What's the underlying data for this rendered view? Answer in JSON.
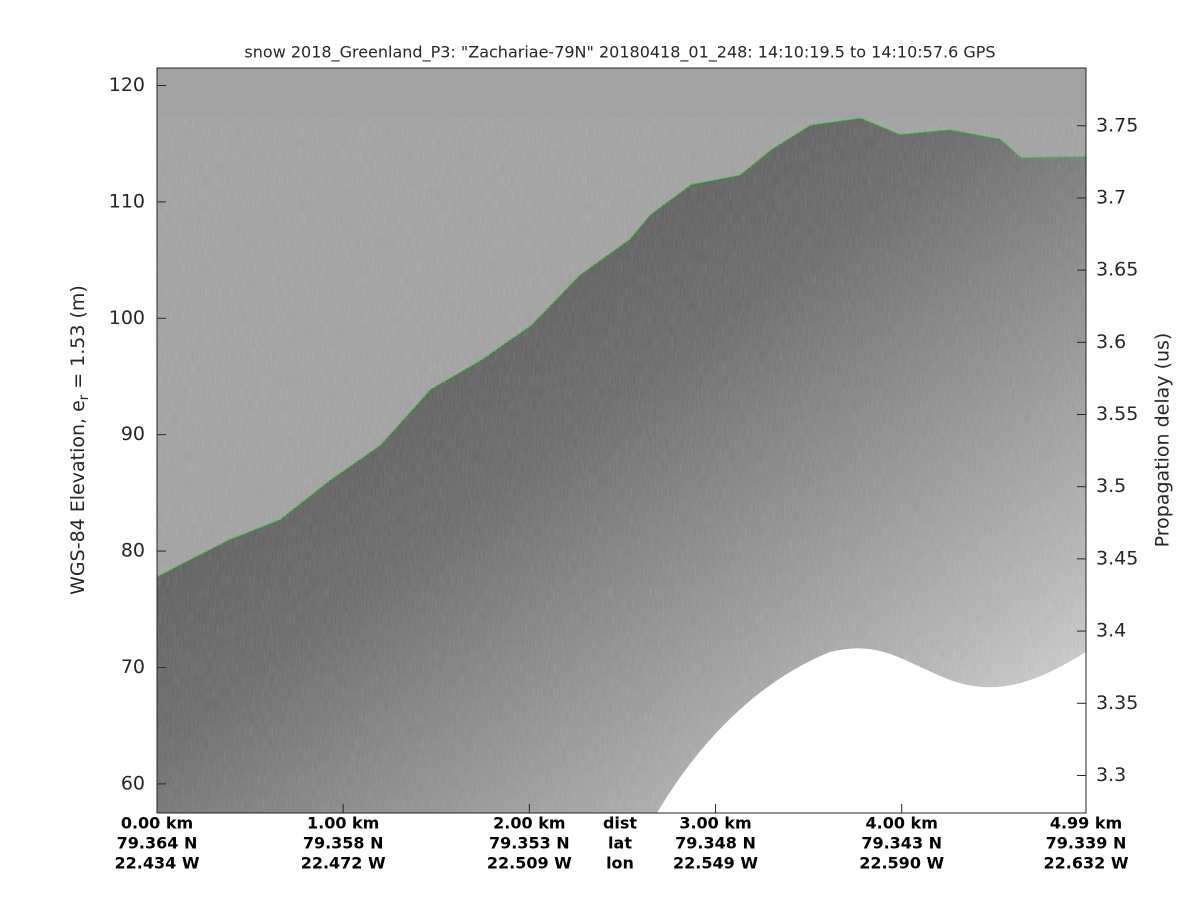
{
  "chart_data": {
    "type": "echogram",
    "title": "snow 2018_Greenland_P3: \"Zachariae-79N\"  20180418_01_248: 14:10:19.5 to 14:10:57.6 GPS",
    "ylabel": [
      "WGS-84 Elevation, e",
      "r",
      " = 1.53 (m)"
    ],
    "y2label": "Propagation delay (us)",
    "xlim": [
      0,
      4.99
    ],
    "xticks": [
      {
        "value": 0,
        "label": "0.00 km"
      },
      {
        "value": 1,
        "label": "1.00 km"
      },
      {
        "value": 2,
        "label": "2.00 km"
      },
      {
        "value": 3,
        "label": "3.00 km"
      },
      {
        "value": 4,
        "label": "4.00 km"
      },
      {
        "value": 4.99,
        "label": "4.99 km"
      }
    ],
    "lat_labels": [
      "79.364 N",
      "79.358 N",
      "79.353 N",
      "79.348 N",
      "79.343 N",
      "79.339 N"
    ],
    "lon_labels": [
      "22.434 W",
      "22.472 W",
      "22.509 W",
      "22.549 W",
      "22.590 W",
      "22.632 W"
    ],
    "row_names": [
      "dist",
      "lat",
      "lon"
    ],
    "ylim": [
      57.5,
      121.5
    ],
    "yticks": [
      60,
      70,
      80,
      90,
      100,
      110,
      120
    ],
    "y2lim": [
      3.274,
      3.79
    ],
    "y2ticks": [
      3.3,
      3.35,
      3.4,
      3.45,
      3.5,
      3.55,
      3.6,
      3.65,
      3.7,
      3.75
    ],
    "surface": {
      "color": "#22dd22",
      "x": [
        0,
        0.12,
        0.39,
        0.66,
        0.93,
        1.2,
        1.47,
        1.74,
        2.01,
        2.27,
        2.54,
        2.65,
        2.87,
        3.13,
        3.3,
        3.51,
        3.78,
        3.99,
        4.26,
        4.53,
        4.64,
        4.99
      ],
      "values": [
        77.8,
        78.8,
        81.0,
        82.7,
        86.1,
        89.1,
        93.9,
        96.4,
        99.4,
        103.7,
        106.8,
        108.9,
        111.5,
        112.3,
        114.5,
        116.6,
        117.2,
        115.8,
        116.2,
        115.4,
        113.8,
        113.9
      ]
    }
  }
}
